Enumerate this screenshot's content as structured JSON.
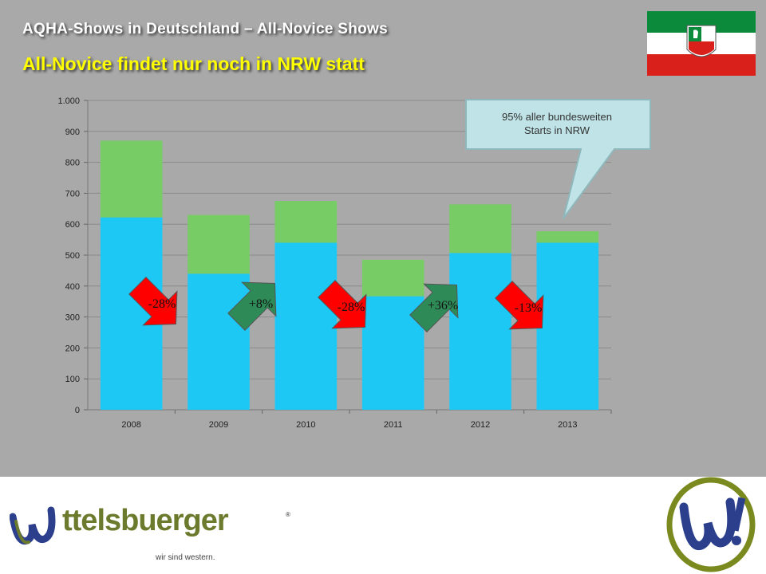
{
  "header": {
    "title": "AQHA-Shows  in Deutschland – All-Novice  Shows",
    "subtitle": "All-Novice findet nur noch in NRW statt"
  },
  "callout": {
    "text_line1": "95% aller bundesweiten",
    "text_line2": "Starts in NRW"
  },
  "arrows": [
    {
      "label": "-28%",
      "direction": "down",
      "color": "#ff0000"
    },
    {
      "label": "+8%",
      "direction": "up",
      "color": "#2e8b57"
    },
    {
      "label": "-28%",
      "direction": "down",
      "color": "#ff0000"
    },
    {
      "label": "+36%",
      "direction": "up",
      "color": "#2e8b57"
    },
    {
      "label": "-13%",
      "direction": "down",
      "color": "#ff0000"
    }
  ],
  "chart_data": {
    "type": "bar",
    "stacked": true,
    "categories": [
      "2008",
      "2009",
      "2010",
      "2011",
      "2012",
      "2013"
    ],
    "series": [
      {
        "color": "#1ec8f5",
        "values": [
          622,
          440,
          540,
          367,
          507,
          540
        ]
      },
      {
        "color": "#77cc66",
        "values": [
          248,
          190,
          135,
          118,
          157,
          37
        ]
      }
    ],
    "ylim": [
      0,
      1000
    ],
    "yticks": [
      0,
      100,
      200,
      300,
      400,
      500,
      600,
      700,
      800,
      900,
      1000
    ],
    "ytick_labels": [
      "0",
      "100",
      "200",
      "300",
      "400",
      "500",
      "600",
      "700",
      "800",
      "900",
      "1.000"
    ],
    "grid": true
  },
  "footer": {
    "brand": "ttelsbuerger",
    "slogan": "wir sind western.",
    "reg_mark": "®",
    "badge_text": "W!"
  },
  "colors": {
    "background": "#a9a9a9",
    "title": "#ffffff",
    "subtitle": "#ffff00",
    "brand": "#6b7a2c",
    "callout_fill": "#bfe3e6"
  }
}
